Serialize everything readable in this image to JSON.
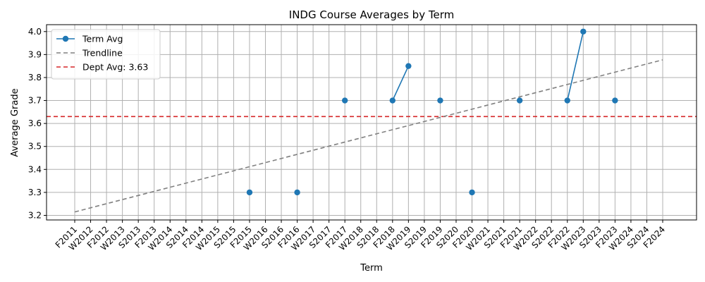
{
  "chart_data": {
    "type": "line",
    "title": "INDG Course Averages by Term",
    "xlabel": "Term",
    "ylabel": "Average Grade",
    "categories": [
      "F2011",
      "W2012",
      "F2012",
      "W2013",
      "S2013",
      "F2013",
      "W2014",
      "S2014",
      "F2014",
      "W2015",
      "S2015",
      "F2015",
      "W2016",
      "S2016",
      "F2016",
      "W2017",
      "S2017",
      "F2017",
      "W2018",
      "S2018",
      "F2018",
      "W2019",
      "S2019",
      "F2019",
      "S2020",
      "F2020",
      "W2021",
      "S2021",
      "F2021",
      "W2022",
      "S2022",
      "F2022",
      "W2023",
      "S2023",
      "F2023",
      "W2024",
      "S2024",
      "F2024"
    ],
    "ylim": [
      3.18,
      4.03
    ],
    "yticks": [
      "3.2",
      "3.3",
      "3.4",
      "3.5",
      "3.6",
      "3.7",
      "3.8",
      "3.9",
      "4.0"
    ],
    "grid": true,
    "legend_position": "top-left",
    "series": [
      {
        "name": "Term Avg",
        "color": "#1f77b4",
        "style": "solid-with-markers",
        "values": [
          null,
          null,
          null,
          null,
          null,
          null,
          null,
          null,
          null,
          null,
          null,
          3.3,
          null,
          null,
          3.3,
          null,
          null,
          3.7,
          null,
          null,
          3.7,
          3.85,
          null,
          3.7,
          null,
          3.3,
          null,
          null,
          3.7,
          null,
          null,
          3.7,
          4.0,
          null,
          3.7,
          null,
          null,
          null
        ]
      },
      {
        "name": "Trendline",
        "color": "#808080",
        "style": "dashed",
        "from": [
          "F2011",
          3.215
        ],
        "to": [
          "F2024",
          3.877
        ]
      },
      {
        "name": "Dept Avg: 3.63",
        "color": "#d62728",
        "style": "dashed-horizontal",
        "value": 3.63
      }
    ]
  }
}
